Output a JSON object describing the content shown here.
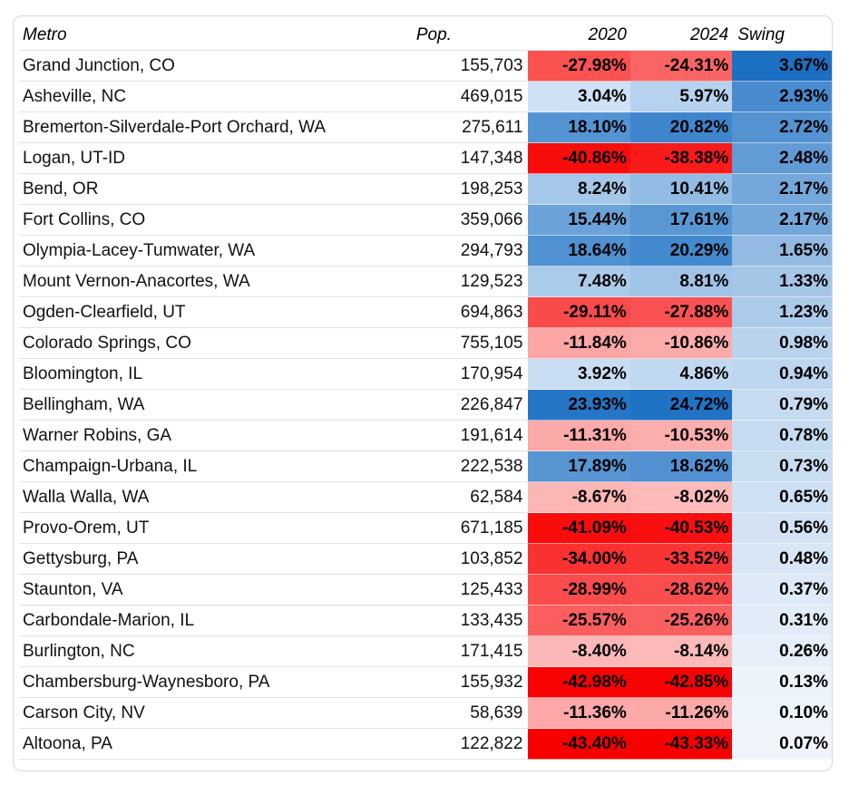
{
  "columns": [
    "Metro",
    "Pop.",
    "2020",
    "2024",
    "Swing"
  ],
  "rows": [
    {
      "metro": "Grand Junction, CO",
      "pop": "155,703",
      "v2020": "-27.98%",
      "v2024": "-24.31%",
      "swing": "3.67%"
    },
    {
      "metro": "Asheville, NC",
      "pop": "469,015",
      "v2020": "3.04%",
      "v2024": "5.97%",
      "swing": "2.93%"
    },
    {
      "metro": "Bremerton-Silverdale-Port Orchard, WA",
      "pop": "275,611",
      "v2020": "18.10%",
      "v2024": "20.82%",
      "swing": "2.72%"
    },
    {
      "metro": "Logan, UT-ID",
      "pop": "147,348",
      "v2020": "-40.86%",
      "v2024": "-38.38%",
      "swing": "2.48%"
    },
    {
      "metro": "Bend, OR",
      "pop": "198,253",
      "v2020": "8.24%",
      "v2024": "10.41%",
      "swing": "2.17%"
    },
    {
      "metro": "Fort Collins, CO",
      "pop": "359,066",
      "v2020": "15.44%",
      "v2024": "17.61%",
      "swing": "2.17%"
    },
    {
      "metro": "Olympia-Lacey-Tumwater, WA",
      "pop": "294,793",
      "v2020": "18.64%",
      "v2024": "20.29%",
      "swing": "1.65%"
    },
    {
      "metro": "Mount Vernon-Anacortes, WA",
      "pop": "129,523",
      "v2020": "7.48%",
      "v2024": "8.81%",
      "swing": "1.33%"
    },
    {
      "metro": "Ogden-Clearfield, UT",
      "pop": "694,863",
      "v2020": "-29.11%",
      "v2024": "-27.88%",
      "swing": "1.23%"
    },
    {
      "metro": "Colorado Springs, CO",
      "pop": "755,105",
      "v2020": "-11.84%",
      "v2024": "-10.86%",
      "swing": "0.98%"
    },
    {
      "metro": "Bloomington, IL",
      "pop": "170,954",
      "v2020": "3.92%",
      "v2024": "4.86%",
      "swing": "0.94%"
    },
    {
      "metro": "Bellingham, WA",
      "pop": "226,847",
      "v2020": "23.93%",
      "v2024": "24.72%",
      "swing": "0.79%"
    },
    {
      "metro": "Warner Robins, GA",
      "pop": "191,614",
      "v2020": "-11.31%",
      "v2024": "-10.53%",
      "swing": "0.78%"
    },
    {
      "metro": "Champaign-Urbana, IL",
      "pop": "222,538",
      "v2020": "17.89%",
      "v2024": "18.62%",
      "swing": "0.73%"
    },
    {
      "metro": "Walla Walla, WA",
      "pop": "62,584",
      "v2020": "-8.67%",
      "v2024": "-8.02%",
      "swing": "0.65%"
    },
    {
      "metro": "Provo-Orem, UT",
      "pop": "671,185",
      "v2020": "-41.09%",
      "v2024": "-40.53%",
      "swing": "0.56%"
    },
    {
      "metro": "Gettysburg, PA",
      "pop": "103,852",
      "v2020": "-34.00%",
      "v2024": "-33.52%",
      "swing": "0.48%"
    },
    {
      "metro": "Staunton, VA",
      "pop": "125,433",
      "v2020": "-28.99%",
      "v2024": "-28.62%",
      "swing": "0.37%"
    },
    {
      "metro": "Carbondale-Marion, IL",
      "pop": "133,435",
      "v2020": "-25.57%",
      "v2024": "-25.26%",
      "swing": "0.31%"
    },
    {
      "metro": "Burlington, NC",
      "pop": "171,415",
      "v2020": "-8.40%",
      "v2024": "-8.14%",
      "swing": "0.26%"
    },
    {
      "metro": "Chambersburg-Waynesboro, PA",
      "pop": "155,932",
      "v2020": "-42.98%",
      "v2024": "-42.85%",
      "swing": "0.13%"
    },
    {
      "metro": "Carson City, NV",
      "pop": "58,639",
      "v2020": "-11.36%",
      "v2024": "-11.26%",
      "swing": "0.10%"
    },
    {
      "metro": "Altoona, PA",
      "pop": "122,822",
      "v2020": "-43.40%",
      "v2024": "-43.33%",
      "swing": "0.07%"
    }
  ],
  "colors": {
    "red_strong": "#f80000",
    "red_light": "#fde4e4",
    "blue_strong": "#1f72c4",
    "blue_light": "#e8f1fb",
    "swing_strong": "#1c6fc2",
    "swing_light": "#f4f8fd"
  }
}
